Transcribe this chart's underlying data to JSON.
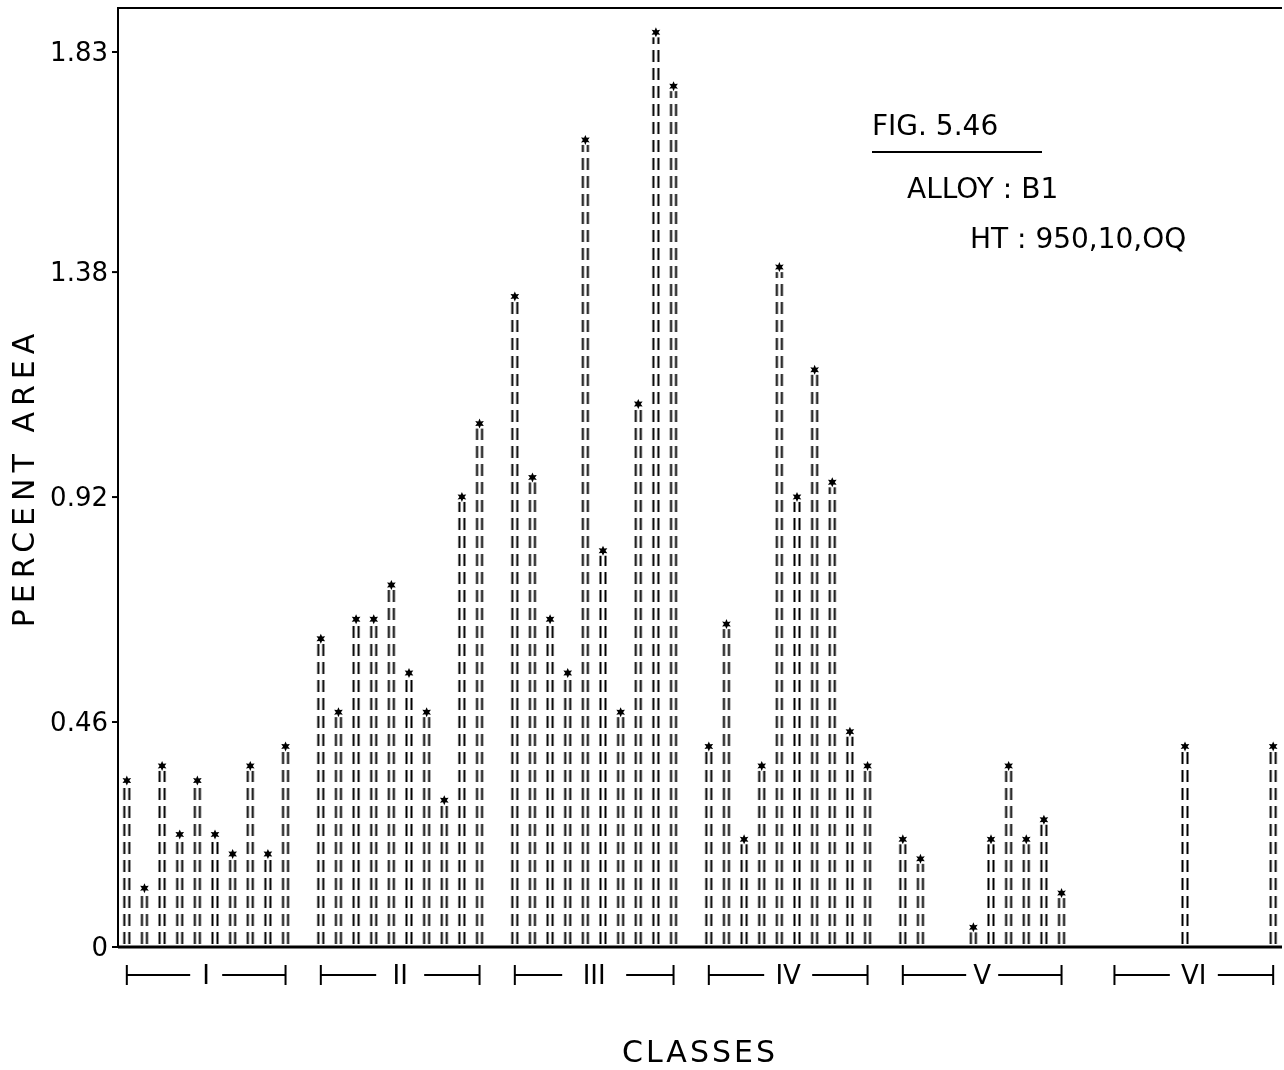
{
  "chart_data": {
    "type": "bar",
    "title": "FIG. 5.46",
    "xlabel": "CLASSES",
    "ylabel": "PERCENT AREA",
    "annotations": [
      "ALLOY : B1",
      "HT : 950,10,OQ",
      "I",
      "II",
      "III",
      "IV",
      "V",
      "VI"
    ],
    "categories": [
      null,
      null,
      null,
      null,
      null,
      null,
      null,
      null,
      null,
      null,
      null,
      null,
      null,
      null,
      null,
      null,
      null,
      null,
      null,
      null,
      null,
      null,
      null,
      null,
      null,
      null,
      null,
      null,
      null,
      null,
      null,
      null,
      null,
      null,
      null,
      null,
      null,
      null,
      null,
      null,
      null,
      null,
      null,
      null,
      null,
      null,
      null,
      null,
      null,
      null,
      null,
      null,
      null,
      null,
      null,
      null,
      null,
      null,
      null,
      null,
      null,
      null,
      null,
      null,
      null,
      null
    ],
    "values": [
      0.33,
      0.11,
      0.36,
      0.22,
      0.33,
      0.22,
      0.18,
      0.36,
      0.18,
      0.4,
      null,
      0.62,
      0.47,
      0.66,
      0.66,
      0.73,
      0.55,
      0.47,
      0.29,
      0.91,
      1.06,
      null,
      1.32,
      0.95,
      0.66,
      0.55,
      1.64,
      0.8,
      0.47,
      1.1,
      1.86,
      1.75,
      null,
      0.4,
      0.65,
      0.21,
      0.36,
      1.38,
      0.91,
      1.17,
      0.94,
      0.43,
      0.36,
      null,
      0.21,
      0.17,
      0,
      0,
      0.03,
      0.21,
      0.36,
      0.21,
      0.25,
      0.1,
      null,
      null,
      0,
      0,
      0,
      0,
      0.4,
      0,
      0,
      0,
      0,
      0.4
    ],
    "color": "#000000",
    "ylim": [
      0,
      1.92
    ],
    "yticks": [
      0,
      0.46,
      0.92,
      1.38,
      1.83
    ],
    "grid": false
  }
}
